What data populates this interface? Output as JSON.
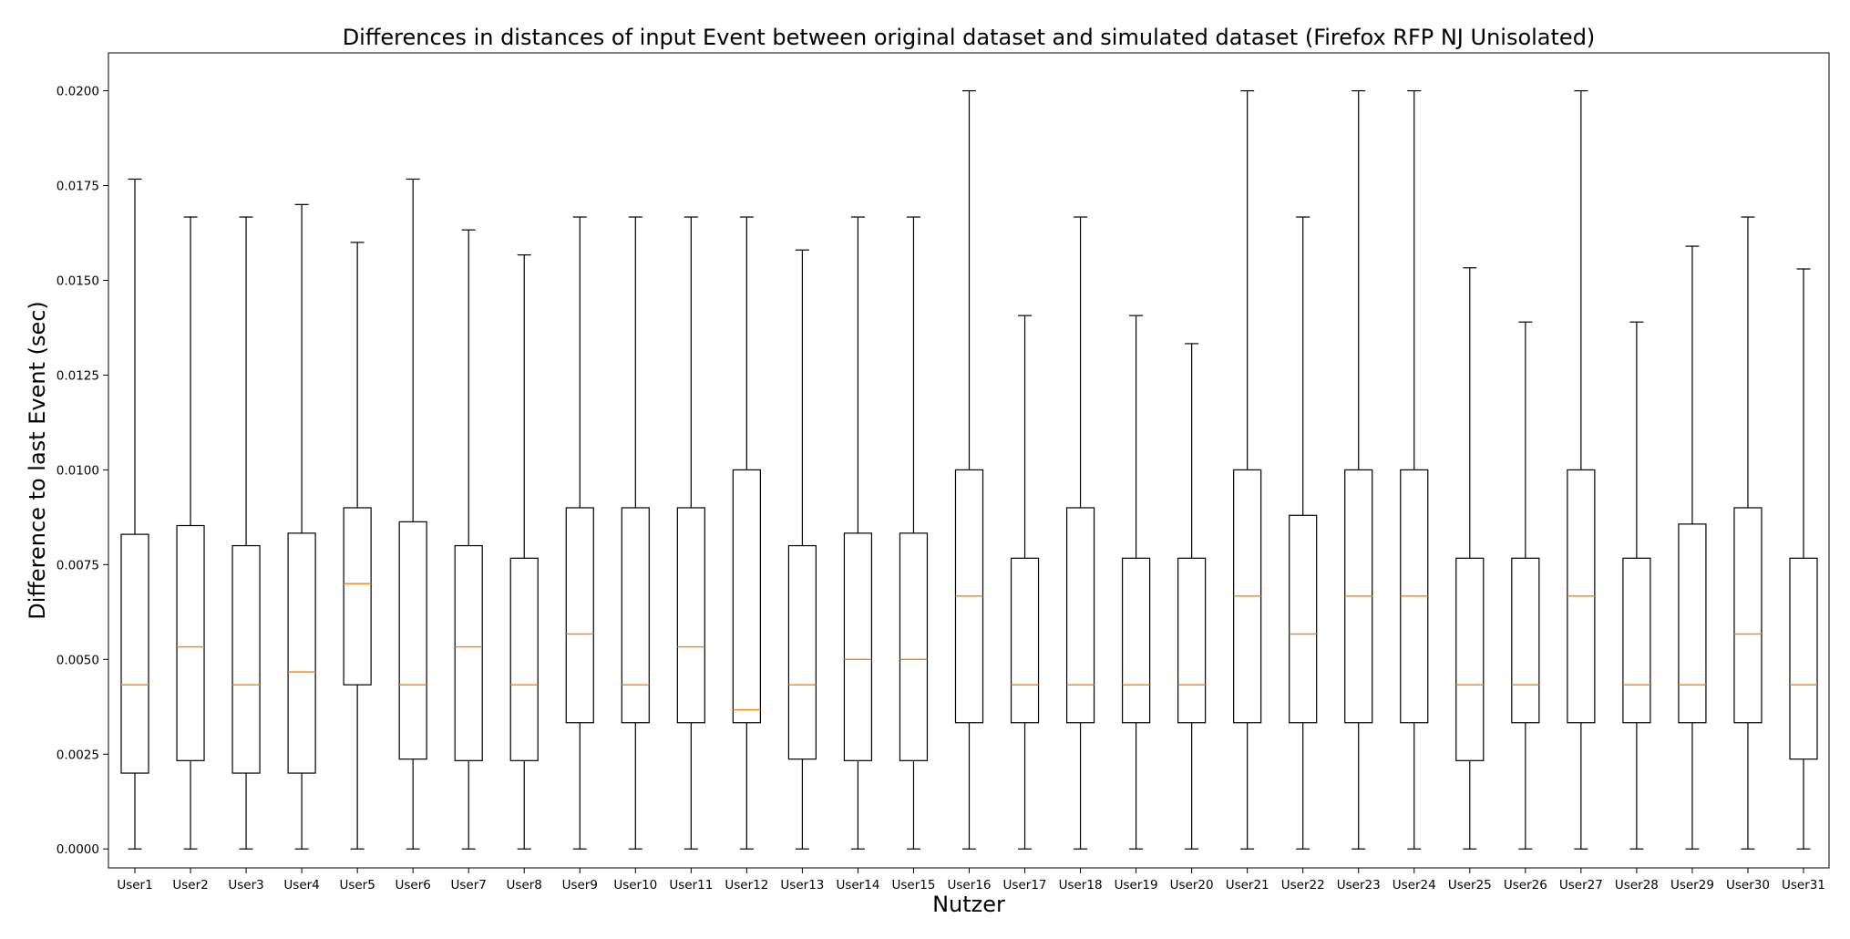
{
  "chart_data": {
    "type": "boxplot",
    "title": "Differences in distances of input Event between original dataset and simulated dataset (Firefox RFP NJ Unisolated)",
    "xlabel": "Nutzer",
    "ylabel": "Difference to last Event (sec)",
    "ylim": [
      -0.0005,
      0.021
    ],
    "yticks": [
      "0.0000",
      "0.0025",
      "0.0050",
      "0.0075",
      "0.0100",
      "0.0125",
      "0.0150",
      "0.0175",
      "0.0200"
    ],
    "grid": false,
    "colors": {
      "box": "#000000",
      "median": "#ff7f0e",
      "whisker": "#000000"
    },
    "categories": [
      "User1",
      "User2",
      "User3",
      "User4",
      "User5",
      "User6",
      "User7",
      "User8",
      "User9",
      "User10",
      "User11",
      "User12",
      "User13",
      "User14",
      "User15",
      "User16",
      "User17",
      "User18",
      "User19",
      "User20",
      "User21",
      "User22",
      "User23",
      "User24",
      "User25",
      "User26",
      "User27",
      "User28",
      "User29",
      "User30",
      "User31"
    ],
    "boxes": [
      {
        "min": 0.0,
        "q1": 0.002,
        "median": 0.00433,
        "q3": 0.0083,
        "max": 0.01767
      },
      {
        "min": 0.0,
        "q1": 0.00233,
        "median": 0.00533,
        "q3": 0.00853,
        "max": 0.01667
      },
      {
        "min": 0.0,
        "q1": 0.002,
        "median": 0.00433,
        "q3": 0.008,
        "max": 0.01667
      },
      {
        "min": 0.0,
        "q1": 0.002,
        "median": 0.00467,
        "q3": 0.00833,
        "max": 0.017
      },
      {
        "min": 0.0,
        "q1": 0.00433,
        "median": 0.007,
        "q3": 0.009,
        "max": 0.016
      },
      {
        "min": 0.0,
        "q1": 0.00237,
        "median": 0.00433,
        "q3": 0.00863,
        "max": 0.01767
      },
      {
        "min": 0.0,
        "q1": 0.00233,
        "median": 0.00533,
        "q3": 0.008,
        "max": 0.01633
      },
      {
        "min": 0.0,
        "q1": 0.00233,
        "median": 0.00433,
        "q3": 0.00767,
        "max": 0.01567
      },
      {
        "min": 0.0,
        "q1": 0.00333,
        "median": 0.00567,
        "q3": 0.009,
        "max": 0.01667
      },
      {
        "min": 0.0,
        "q1": 0.00333,
        "median": 0.00433,
        "q3": 0.009,
        "max": 0.01667
      },
      {
        "min": 0.0,
        "q1": 0.00333,
        "median": 0.00533,
        "q3": 0.009,
        "max": 0.01667
      },
      {
        "min": 0.0,
        "q1": 0.00333,
        "median": 0.00367,
        "q3": 0.01,
        "max": 0.01667
      },
      {
        "min": 0.0,
        "q1": 0.00237,
        "median": 0.00433,
        "q3": 0.008,
        "max": 0.0158
      },
      {
        "min": 0.0,
        "q1": 0.00233,
        "median": 0.005,
        "q3": 0.00833,
        "max": 0.01667
      },
      {
        "min": 0.0,
        "q1": 0.00233,
        "median": 0.005,
        "q3": 0.00833,
        "max": 0.01667
      },
      {
        "min": 0.0,
        "q1": 0.00333,
        "median": 0.00667,
        "q3": 0.01,
        "max": 0.02
      },
      {
        "min": 0.0,
        "q1": 0.00333,
        "median": 0.00433,
        "q3": 0.00767,
        "max": 0.01407
      },
      {
        "min": 0.0,
        "q1": 0.00333,
        "median": 0.00433,
        "q3": 0.009,
        "max": 0.01667
      },
      {
        "min": 0.0,
        "q1": 0.00333,
        "median": 0.00433,
        "q3": 0.00767,
        "max": 0.01407
      },
      {
        "min": 0.0,
        "q1": 0.00333,
        "median": 0.00433,
        "q3": 0.00767,
        "max": 0.01333
      },
      {
        "min": 0.0,
        "q1": 0.00333,
        "median": 0.00667,
        "q3": 0.01,
        "max": 0.02
      },
      {
        "min": 0.0,
        "q1": 0.00333,
        "median": 0.00567,
        "q3": 0.0088,
        "max": 0.01667
      },
      {
        "min": 0.0,
        "q1": 0.00333,
        "median": 0.00667,
        "q3": 0.01,
        "max": 0.02
      },
      {
        "min": 0.0,
        "q1": 0.00333,
        "median": 0.00667,
        "q3": 0.01,
        "max": 0.02
      },
      {
        "min": 0.0,
        "q1": 0.00233,
        "median": 0.00433,
        "q3": 0.00767,
        "max": 0.01533
      },
      {
        "min": 0.0,
        "q1": 0.00333,
        "median": 0.00433,
        "q3": 0.00767,
        "max": 0.0139
      },
      {
        "min": 0.0,
        "q1": 0.00333,
        "median": 0.00667,
        "q3": 0.01,
        "max": 0.02
      },
      {
        "min": 0.0,
        "q1": 0.00333,
        "median": 0.00433,
        "q3": 0.00767,
        "max": 0.0139
      },
      {
        "min": 0.0,
        "q1": 0.00333,
        "median": 0.00433,
        "q3": 0.00857,
        "max": 0.0159
      },
      {
        "min": 0.0,
        "q1": 0.00333,
        "median": 0.00567,
        "q3": 0.009,
        "max": 0.01667
      },
      {
        "min": 0.0,
        "q1": 0.00237,
        "median": 0.00433,
        "q3": 0.00767,
        "max": 0.0153
      }
    ]
  }
}
